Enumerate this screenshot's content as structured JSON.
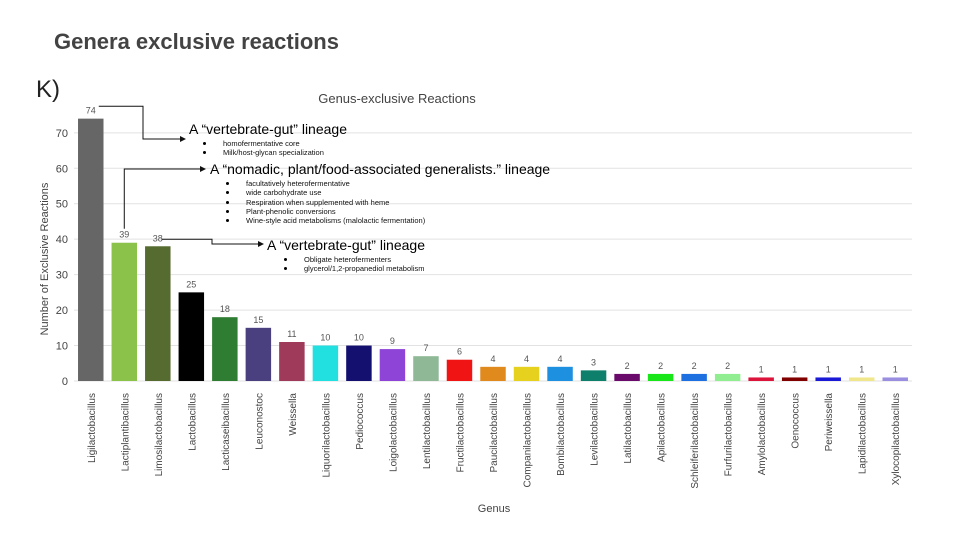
{
  "slide": {
    "title": "Genera exclusive reactions",
    "panel_label": "K)"
  },
  "chart_data": {
    "type": "bar",
    "title": "Genus-exclusive Reactions",
    "xlabel": "Genus",
    "ylabel": "Number of Exclusive Reactions",
    "ylim": [
      0,
      77
    ],
    "yticks": [
      0,
      10,
      20,
      30,
      40,
      50,
      60,
      70
    ],
    "grid": true,
    "legend": "none",
    "categories": [
      "Ligilactobacillus",
      "Lactiplantibacillus",
      "Limosilactobacillus",
      "Lactobacillus",
      "Lacticaseibacillus",
      "Leuconostoc",
      "Weissella",
      "Liquorilactobacillus",
      "Pediococcus",
      "Loigolactobacillus",
      "Lentilactobacillus",
      "Fructilactobacillus",
      "Paucilactobacillus",
      "Companilactobacillus",
      "Bombilactobacillus",
      "Levilactobacillus",
      "Latilactobacillus",
      "Apilactobacillus",
      "Schleiferilactobacillus",
      "Furfurilactobacillus",
      "Amylolactobacillus",
      "Oenococcus",
      "Periweissella",
      "Lapidilactobacillus",
      "Xylocopilactobacillus"
    ],
    "values": [
      74,
      39,
      38,
      25,
      18,
      15,
      11,
      10,
      10,
      9,
      7,
      6,
      4,
      4,
      4,
      3,
      2,
      2,
      2,
      2,
      1,
      1,
      1,
      1,
      1
    ],
    "colors": [
      "#666666",
      "#8bc34a",
      "#556b2f",
      "#000000",
      "#2e7d32",
      "#4a4080",
      "#a03a5a",
      "#22e0e0",
      "#131070",
      "#8e44d6",
      "#8fb996",
      "#f01414",
      "#e08a1e",
      "#e6d21e",
      "#1e90e0",
      "#0e7f6a",
      "#6a0a6a",
      "#19e619",
      "#1e6fe0",
      "#90ee90",
      "#dc143c",
      "#800000",
      "#1a1ad6",
      "#f0e68c",
      "#9a8ee0"
    ],
    "annotations": [
      {
        "heading": "A “vertebrate-gut” lineage",
        "points": [
          "homofermentative core",
          "Milk/host-glycan specialization"
        ]
      },
      {
        "heading": "A “nomadic, plant/food-associated generalists.” lineage",
        "points": [
          "facultatively heterofermentative",
          "wide carbohydrate use",
          "Respiration when supplemented with heme",
          "Plant-phenolic conversions",
          "Wine-style acid metabolisms (malolactic fermentation)"
        ]
      },
      {
        "heading": "A “vertebrate-gut” lineage",
        "points": [
          "Obligate heterofermenters",
          "glycerol/1,2-propanediol metabolism"
        ]
      }
    ]
  }
}
